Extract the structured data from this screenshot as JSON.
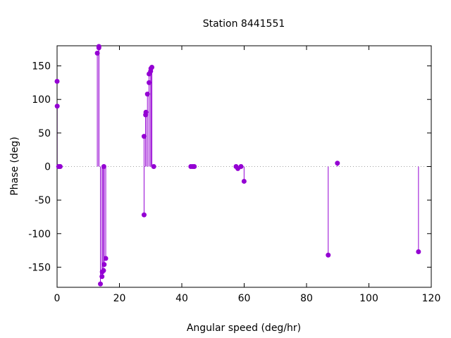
{
  "chart_data": {
    "type": "scatter",
    "style": "impulses-with-points",
    "title": "Station 8441551",
    "xlabel": "Angular speed (deg/hr)",
    "ylabel": "Phase (deg)",
    "xlim": [
      0,
      120
    ],
    "ylim": [
      -180,
      180
    ],
    "xticks": [
      0,
      20,
      40,
      60,
      80,
      100,
      120
    ],
    "yticks": [
      -150,
      -100,
      -50,
      0,
      50,
      100,
      150
    ],
    "grid": false,
    "zero_line": "dotted",
    "color": "#9400d3",
    "series": [
      {
        "points": [
          [
            0.0,
            127
          ],
          [
            0.04,
            90
          ],
          [
            0.5,
            0
          ],
          [
            1.0,
            0
          ],
          [
            12.9,
            169
          ],
          [
            13.4,
            177
          ],
          [
            13.4,
            179
          ],
          [
            13.9,
            -175
          ],
          [
            14.4,
            -164
          ],
          [
            14.5,
            -157
          ],
          [
            14.9,
            -155
          ],
          [
            15.0,
            0
          ],
          [
            15.1,
            -146
          ],
          [
            15.6,
            -137
          ],
          [
            27.9,
            -72
          ],
          [
            27.9,
            45
          ],
          [
            28.4,
            77
          ],
          [
            28.5,
            81
          ],
          [
            28.98,
            108
          ],
          [
            29.5,
            125
          ],
          [
            29.5,
            138
          ],
          [
            30.0,
            142
          ],
          [
            30.1,
            146
          ],
          [
            30.4,
            148
          ],
          [
            31.0,
            0
          ],
          [
            42.9,
            0
          ],
          [
            43.5,
            0
          ],
          [
            44.0,
            0
          ],
          [
            57.4,
            0
          ],
          [
            57.97,
            -3
          ],
          [
            58.98,
            0
          ],
          [
            59.97,
            -22
          ],
          [
            86.95,
            -132
          ],
          [
            89.9,
            5
          ],
          [
            115.9,
            -127
          ]
        ]
      }
    ]
  }
}
